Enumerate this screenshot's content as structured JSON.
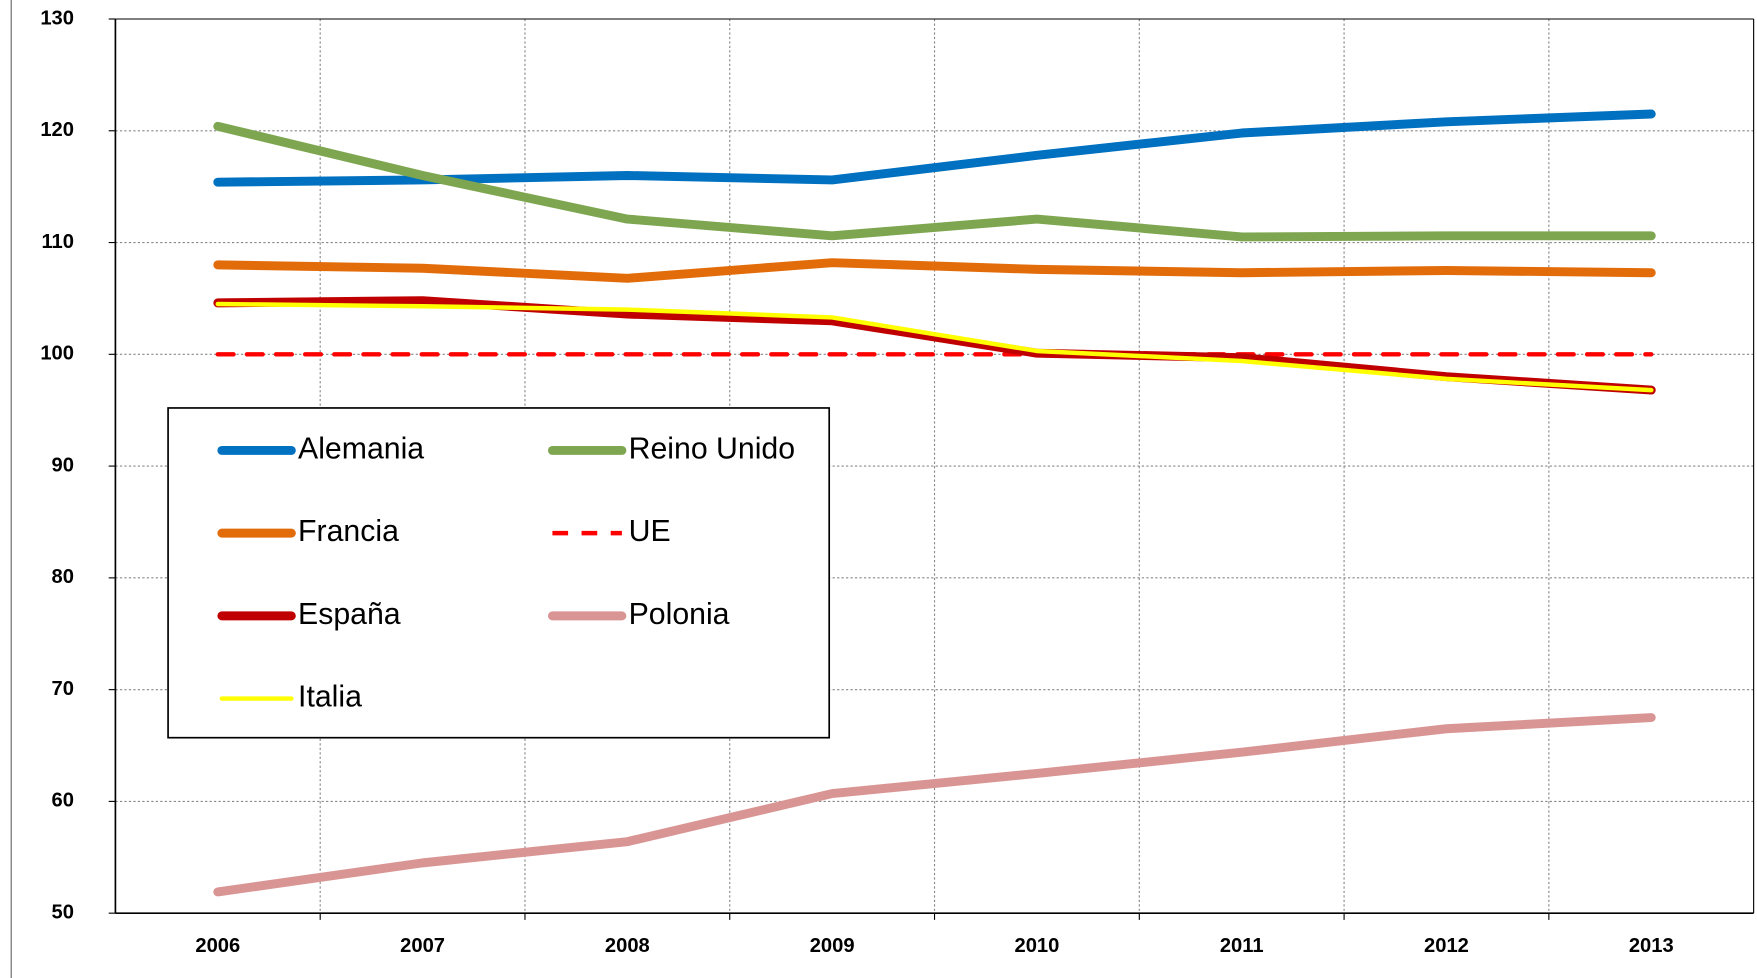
{
  "chart_data": {
    "type": "line",
    "categories": [
      "2006",
      "2007",
      "2008",
      "2009",
      "2010",
      "2011",
      "2012",
      "2013"
    ],
    "ylim": [
      50,
      130
    ],
    "yticks": [
      50,
      60,
      70,
      80,
      90,
      100,
      110,
      120,
      130
    ],
    "grid": true,
    "legend": "lower left",
    "series": [
      {
        "name": "Alemania",
        "color": "#0070c0",
        "values": [
          115.4,
          115.6,
          116.0,
          115.6,
          117.8,
          119.8,
          120.8,
          121.5
        ]
      },
      {
        "name": "Reino Unido",
        "color": "#7ea650",
        "values": [
          120.4,
          116.0,
          112.1,
          110.6,
          112.1,
          110.5,
          110.6,
          110.6
        ]
      },
      {
        "name": "Francia",
        "color": "#e36c0a",
        "values": [
          108.0,
          107.7,
          106.8,
          108.2,
          107.6,
          107.3,
          107.5,
          107.3
        ]
      },
      {
        "name": "UE",
        "color": "#ff0000",
        "dashed": true,
        "values": [
          100,
          100,
          100,
          100,
          100,
          100,
          100,
          100
        ]
      },
      {
        "name": "España",
        "color": "#c00000",
        "values": [
          104.6,
          104.8,
          103.6,
          103.0,
          100.1,
          99.7,
          98.0,
          96.8
        ]
      },
      {
        "name": "Polonia",
        "color": "#d99594",
        "values": [
          51.9,
          54.5,
          56.4,
          60.7,
          62.5,
          64.4,
          66.5,
          67.5
        ]
      },
      {
        "name": "Italia",
        "color": "#ffff00",
        "values": [
          104.5,
          104.3,
          104.0,
          103.3,
          100.3,
          99.4,
          97.8,
          96.8
        ]
      }
    ]
  }
}
